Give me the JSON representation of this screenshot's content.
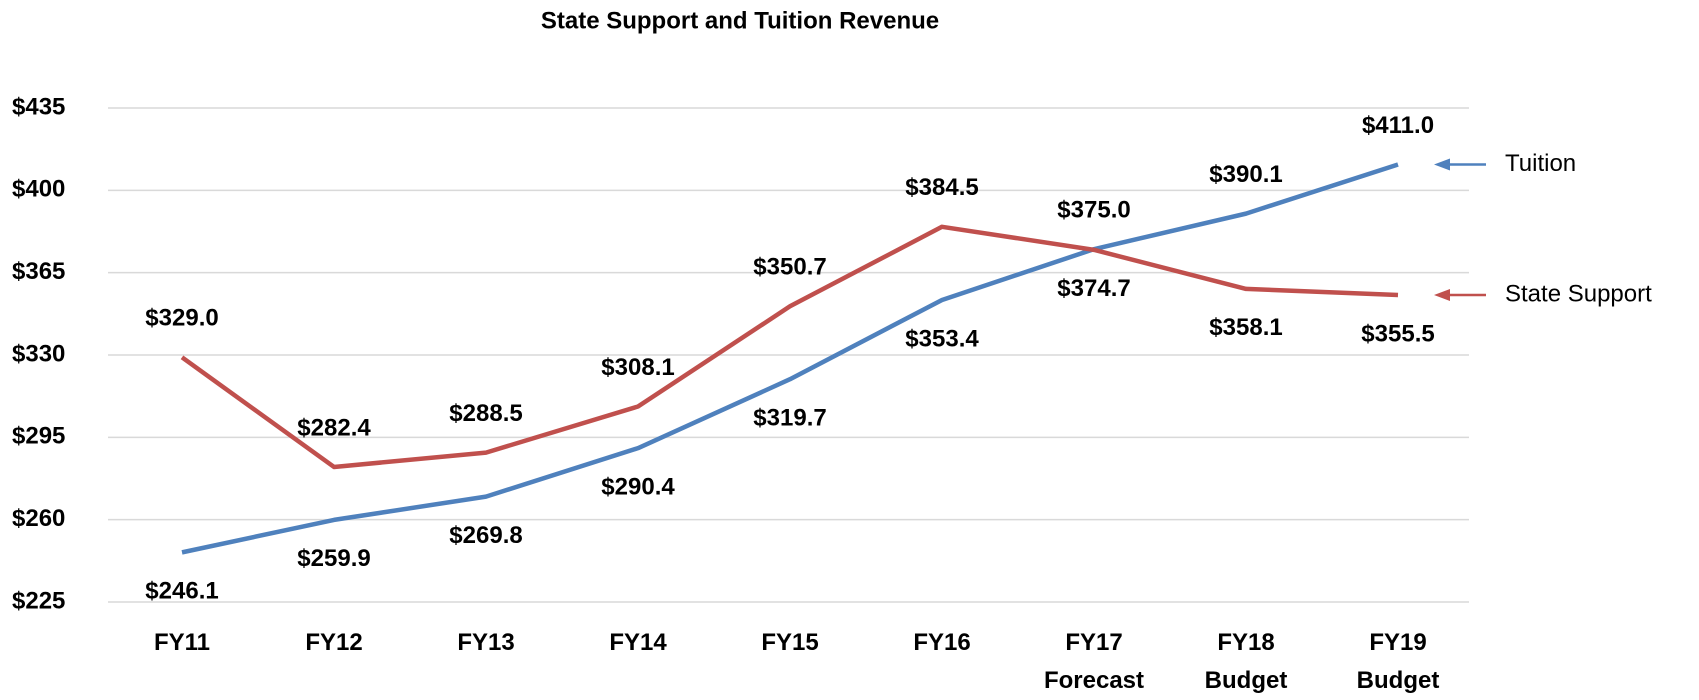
{
  "chart_data": {
    "type": "line",
    "title": "State Support and Tuition Revenue",
    "categories": [
      "FY11",
      "FY12",
      "FY13",
      "FY14",
      "FY15",
      "FY16",
      "FY17\nForecast",
      "FY18\nBudget",
      "FY19\nBudget"
    ],
    "series": [
      {
        "name": "Tuition",
        "color": "#4f81bd",
        "values": [
          246.1,
          259.9,
          269.8,
          290.4,
          319.7,
          353.4,
          375.0,
          390.1,
          411.0
        ],
        "value_labels": [
          "$246.1",
          "$259.9",
          "$269.8",
          "$290.4",
          "$319.7",
          "$353.4",
          "$375.0",
          "$390.1",
          "$411.0"
        ]
      },
      {
        "name": "State Support",
        "color": "#c0504d",
        "values": [
          329.0,
          282.4,
          288.5,
          308.1,
          350.7,
          384.5,
          374.7,
          358.1,
          355.5
        ],
        "value_labels": [
          "$329.0",
          "$282.4",
          "$288.5",
          "$308.1",
          "$350.7",
          "$384.5",
          "$374.7",
          "$358.1",
          "$355.5"
        ]
      }
    ],
    "ylim": [
      225,
      435
    ],
    "yticks": [
      {
        "value": 225,
        "label": "$225"
      },
      {
        "value": 260,
        "label": "$260"
      },
      {
        "value": 295,
        "label": "$295"
      },
      {
        "value": 330,
        "label": "$330"
      },
      {
        "value": 365,
        "label": "$365"
      },
      {
        "value": 400,
        "label": "$400"
      },
      {
        "value": 435,
        "label": "$435"
      }
    ],
    "grid": true
  }
}
